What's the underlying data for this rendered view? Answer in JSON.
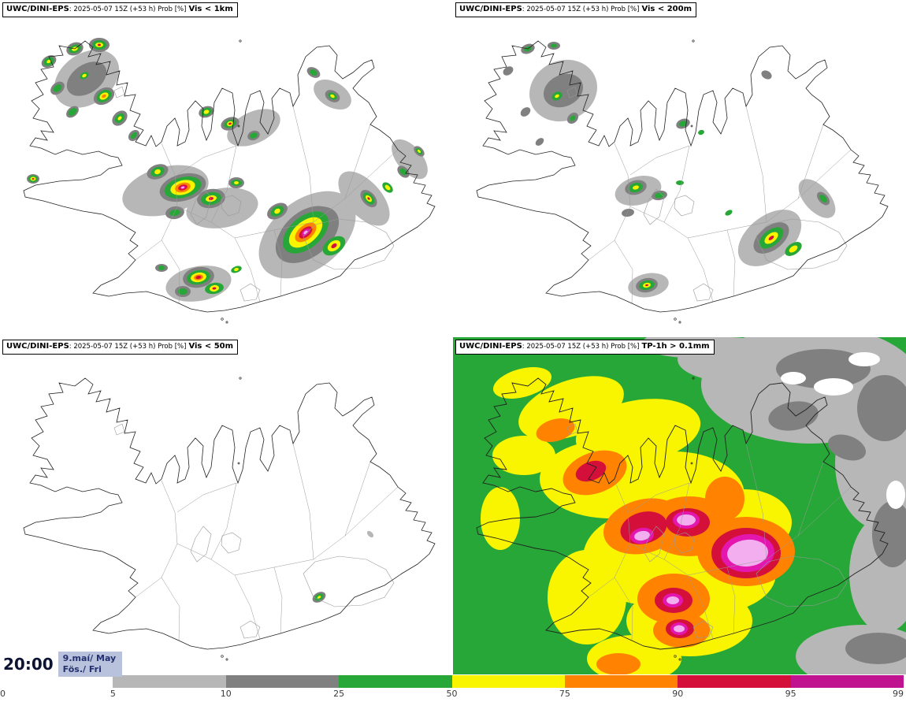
{
  "panels": [
    {
      "id": "vis1km",
      "product": "UWC/DINI-EPS",
      "meta": ": 2025-05-07 15Z (+53 h) Prob [%]",
      "param": "Vis < 1km"
    },
    {
      "id": "vis200m",
      "product": "UWC/DINI-EPS",
      "meta": ": 2025-05-07 15Z (+53 h) Prob [%]",
      "param": "Vis < 200m"
    },
    {
      "id": "vis50m",
      "product": "UWC/DINI-EPS",
      "meta": ": 2025-05-07 15Z (+53 h) Prob [%]",
      "param": "Vis < 50m"
    },
    {
      "id": "tp1h",
      "product": "UWC/DINI-EPS",
      "meta": ": 2025-05-07 15Z (+53 h) Prob [%]",
      "param": "TP-1h > 0.1mm"
    }
  ],
  "timestamp": {
    "time": "20:00",
    "date": "9.maí/ May",
    "weekday": "Fös./ Fri"
  },
  "colorbar": {
    "tick_labels": [
      "0",
      "5",
      "10",
      "25",
      "50",
      "75",
      "90",
      "95",
      "99"
    ],
    "segments": [
      {
        "label": "0-5",
        "color": "#ffffff"
      },
      {
        "label": "5-10",
        "color": "#b7b7b7"
      },
      {
        "label": "10-25",
        "color": "#808080"
      },
      {
        "label": "25-50",
        "color": "#27a737"
      },
      {
        "label": "50-75",
        "color": "#f9f500"
      },
      {
        "label": "75-90",
        "color": "#ff8300"
      },
      {
        "label": "90-95",
        "color": "#d40f3a"
      },
      {
        "label": "95-99",
        "color": "#c01390"
      }
    ]
  },
  "colors": {
    "prob_5": "#b7b7b7",
    "prob_10": "#808080",
    "prob_25": "#27a737",
    "prob_50": "#f9f500",
    "prob_75": "#ff8300",
    "prob_90": "#d40f3a",
    "prob_95": "#e316ae",
    "prob_99": "#f3aef0",
    "coast": "#222222",
    "inner_border": "#9a9a9a",
    "glacier": "#999999",
    "date_box_bg": "#b9c2dd",
    "date_text": "#23306f",
    "time_text": "#0d1333",
    "tick_text": "#3a3a3a"
  }
}
